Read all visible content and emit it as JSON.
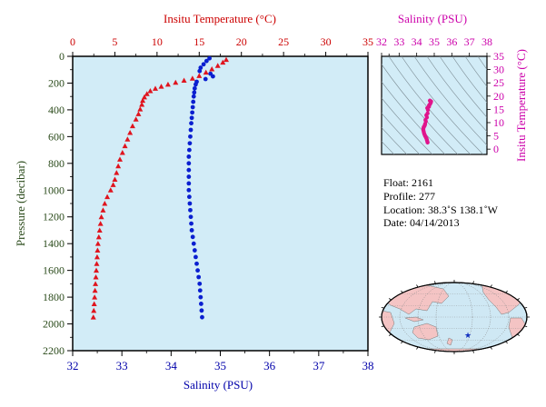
{
  "chart_data": [
    {
      "type": "scatter",
      "title": "",
      "top_axis_label": "Insitu Temperature (°C)",
      "top_axis_ticks": [
        "0",
        "5",
        "10",
        "15",
        "20",
        "25",
        "30",
        "35"
      ],
      "top_axis_range": [
        0,
        35
      ],
      "bottom_axis_label": "Salinity (PSU)",
      "bottom_axis_ticks": [
        "32",
        "33",
        "34",
        "35",
        "36",
        "37",
        "38"
      ],
      "bottom_axis_range": [
        32,
        38
      ],
      "ylabel": "Pressure (decibar)",
      "y_ticks": [
        "0",
        "200",
        "400",
        "600",
        "800",
        "1000",
        "1200",
        "1400",
        "1600",
        "1800",
        "2000",
        "2200"
      ],
      "y_range": [
        0,
        2200
      ],
      "y_inverted": true,
      "background": "#d2ecf7",
      "series": [
        {
          "marker": "triangle",
          "color": "#e0141e",
          "axis": "top",
          "points": [
            [
              18.2,
              25
            ],
            [
              17.8,
              45
            ],
            [
              17.2,
              70
            ],
            [
              16.5,
              95
            ],
            [
              15.8,
              120
            ],
            [
              15.0,
              145
            ],
            [
              14.2,
              165
            ],
            [
              13.2,
              180
            ],
            [
              12.2,
              195
            ],
            [
              11.3,
              210
            ],
            [
              10.5,
              225
            ],
            [
              9.8,
              240
            ],
            [
              9.2,
              258
            ],
            [
              8.8,
              280
            ],
            [
              8.5,
              305
            ],
            [
              8.3,
              330
            ],
            [
              8.2,
              360
            ],
            [
              8.0,
              395
            ],
            [
              7.8,
              430
            ],
            [
              7.5,
              470
            ],
            [
              7.1,
              520
            ],
            [
              6.8,
              570
            ],
            [
              6.5,
              620
            ],
            [
              6.2,
              670
            ],
            [
              5.9,
              720
            ],
            [
              5.6,
              770
            ],
            [
              5.4,
              820
            ],
            [
              5.2,
              870
            ],
            [
              5.0,
              920
            ],
            [
              4.8,
              960
            ],
            [
              4.5,
              1000
            ],
            [
              4.1,
              1050
            ],
            [
              3.8,
              1100
            ],
            [
              3.6,
              1150
            ],
            [
              3.4,
              1200
            ],
            [
              3.3,
              1250
            ],
            [
              3.2,
              1300
            ],
            [
              3.1,
              1350
            ],
            [
              3.0,
              1400
            ],
            [
              2.95,
              1450
            ],
            [
              2.9,
              1500
            ],
            [
              2.85,
              1550
            ],
            [
              2.8,
              1600
            ],
            [
              2.75,
              1650
            ],
            [
              2.7,
              1700
            ],
            [
              2.65,
              1750
            ],
            [
              2.6,
              1800
            ],
            [
              2.55,
              1850
            ],
            [
              2.5,
              1900
            ],
            [
              2.45,
              1950
            ]
          ]
        },
        {
          "marker": "dot",
          "color": "#0a1fd0",
          "axis": "bottom",
          "points": [
            [
              34.78,
              15
            ],
            [
              34.72,
              35
            ],
            [
              34.66,
              60
            ],
            [
              34.6,
              85
            ],
            [
              34.58,
              110
            ],
            [
              34.8,
              130
            ],
            [
              34.85,
              150
            ],
            [
              34.7,
              170
            ],
            [
              34.52,
              190
            ],
            [
              34.5,
              210
            ],
            [
              34.48,
              240
            ],
            [
              34.47,
              270
            ],
            [
              34.46,
              300
            ],
            [
              34.45,
              340
            ],
            [
              34.44,
              380
            ],
            [
              34.43,
              420
            ],
            [
              34.42,
              460
            ],
            [
              34.41,
              500
            ],
            [
              34.4,
              550
            ],
            [
              34.39,
              600
            ],
            [
              34.38,
              650
            ],
            [
              34.37,
              700
            ],
            [
              34.36,
              750
            ],
            [
              34.36,
              800
            ],
            [
              34.36,
              850
            ],
            [
              34.36,
              900
            ],
            [
              34.36,
              950
            ],
            [
              34.36,
              1000
            ],
            [
              34.37,
              1050
            ],
            [
              34.38,
              1100
            ],
            [
              34.39,
              1150
            ],
            [
              34.4,
              1200
            ],
            [
              34.41,
              1250
            ],
            [
              34.42,
              1300
            ],
            [
              34.44,
              1350
            ],
            [
              34.46,
              1400
            ],
            [
              34.48,
              1450
            ],
            [
              34.5,
              1500
            ],
            [
              34.52,
              1550
            ],
            [
              34.54,
              1600
            ],
            [
              34.56,
              1650
            ],
            [
              34.58,
              1700
            ],
            [
              34.59,
              1750
            ],
            [
              34.6,
              1800
            ],
            [
              34.61,
              1850
            ],
            [
              34.62,
              1900
            ],
            [
              34.63,
              1950
            ]
          ]
        }
      ]
    },
    {
      "type": "scatter",
      "title": "",
      "top_axis_label": "Salinity (PSU)",
      "top_axis_ticks": [
        "32",
        "33",
        "34",
        "35",
        "36",
        "37",
        "38"
      ],
      "x_range": [
        32,
        38
      ],
      "right_axis_label": "Insitu Temperature (°C)",
      "right_axis_ticks": [
        "0",
        "5",
        "10",
        "15",
        "20",
        "25",
        "30",
        "35"
      ],
      "y_range": [
        -2,
        35
      ],
      "density_contours": true,
      "series": [
        {
          "marker": "dot",
          "color": "#e0148c",
          "points": [
            [
              34.62,
              2.5
            ],
            [
              34.6,
              3.0
            ],
            [
              34.58,
              3.5
            ],
            [
              34.56,
              4.0
            ],
            [
              34.52,
              4.5
            ],
            [
              34.48,
              5.0
            ],
            [
              34.45,
              5.5
            ],
            [
              34.42,
              6.0
            ],
            [
              34.4,
              6.6
            ],
            [
              34.38,
              7.2
            ],
            [
              34.38,
              7.8
            ],
            [
              34.4,
              8.3
            ],
            [
              34.43,
              8.6
            ],
            [
              34.48,
              9.5
            ],
            [
              34.52,
              10.5
            ],
            [
              34.58,
              12.0
            ],
            [
              34.62,
              13.5
            ],
            [
              34.64,
              14.8
            ],
            [
              34.7,
              16.0
            ],
            [
              34.76,
              17.0
            ],
            [
              34.8,
              17.5
            ],
            [
              34.82,
              18.0
            ],
            [
              34.75,
              18.3
            ],
            [
              34.7,
              16.5
            ],
            [
              34.6,
              15.5
            ],
            [
              34.55,
              12.8
            ],
            [
              34.5,
              11.0
            ],
            [
              34.46,
              9.0
            ]
          ]
        }
      ]
    }
  ],
  "info": {
    "float": "Float:  2161",
    "profile": "Profile:  277",
    "location": "Location:  38.3˚S  138.1˚W",
    "date": "Date:  04/14/2013"
  },
  "colors": {
    "temperature_axis": "#cc0000",
    "salinity_axis": "#0000aa",
    "pressure_axis": "#2a4a1a",
    "inset_axis": "#cc00aa",
    "plot_bg": "#d2ecf7",
    "land": "#f4c4c4",
    "ocean": "#cfe8f4",
    "float_marker": "#1030c0"
  },
  "map": {
    "icon": "world-map-icon",
    "marker": "float-location-star"
  }
}
